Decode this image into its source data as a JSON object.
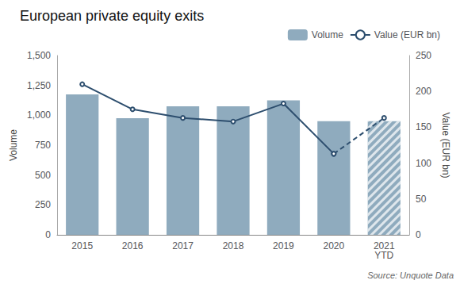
{
  "chart_data": {
    "type": "bar",
    "title": "European private equity exits",
    "source": "Source: Unquote Data",
    "categories": [
      "2015",
      "2016",
      "2017",
      "2018",
      "2019",
      "2020",
      "2021\nYTD"
    ],
    "series": [
      {
        "name": "Volume",
        "type": "bar",
        "color": "#8FABBE",
        "values": [
          1175,
          975,
          1075,
          1075,
          1125,
          950,
          950
        ]
      },
      {
        "name": "Value (EUR bn)",
        "type": "line",
        "color": "#2D4E6E",
        "axis": "y2",
        "values": [
          210,
          175,
          163,
          158,
          183,
          113,
          163
        ]
      }
    ],
    "ylabel": "Volume",
    "y2label": "Value (EUR bn)",
    "ylim": [
      0,
      1500
    ],
    "yticks": [
      0,
      250,
      500,
      750,
      {
        "value": 1000,
        "label": "1,000"
      },
      {
        "value": 1250,
        "label": "1,250"
      },
      {
        "value": 1500,
        "label": "1,500"
      }
    ],
    "y2lim": [
      0,
      250
    ],
    "y2ticks": [
      0,
      50,
      100,
      150,
      200,
      250
    ],
    "legend": "upper right",
    "grid": false
  }
}
